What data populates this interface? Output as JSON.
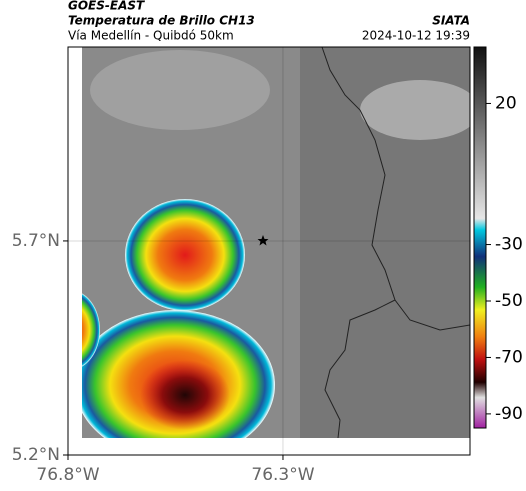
{
  "header": {
    "title": "GOES-EAST",
    "subtitle": "Temperatura de Brillo CH13",
    "location": "Vía Medellín - Quibdó 50km",
    "source": "SIATA",
    "datetime": "2024-10-12 19:39"
  },
  "map": {
    "xlim": [
      -76.8,
      -75.865
    ],
    "ylim": [
      5.2,
      6.153
    ],
    "xticks": [
      {
        "value": -76.8,
        "label": "76.8°W"
      },
      {
        "value": -76.3,
        "label": "76.3°W"
      }
    ],
    "yticks": [
      {
        "value": 5.2,
        "label": "5.2°N"
      },
      {
        "value": 5.7,
        "label": "5.7°N"
      }
    ],
    "grid": true
  },
  "colorbar": {
    "lim": [
      -95,
      40
    ],
    "ticks": [
      20,
      -30,
      -50,
      -70,
      -90
    ]
  }
}
